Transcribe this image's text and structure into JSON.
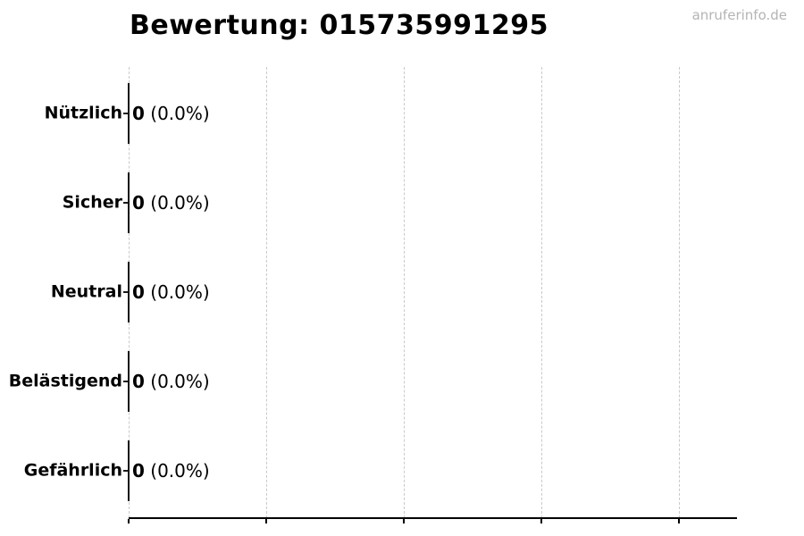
{
  "header": {
    "title": "Bewertung: 015735991295",
    "watermark": "anruferinfo.de"
  },
  "colors": {
    "background": "#ffffff",
    "text": "#000000",
    "grid": "#c9c9c9",
    "bar_edge": "#141414",
    "axis": "#000000",
    "watermark": "#b4b4b4"
  },
  "chart_data": {
    "type": "bar",
    "orientation": "horizontal",
    "title": "Bewertung: 015735991295",
    "categories": [
      "Nützlich",
      "Sicher",
      "Neutral",
      "Belästigend",
      "Gefährlich"
    ],
    "values": [
      0,
      0,
      0,
      0,
      0
    ],
    "percent_labels": [
      "(0.0%)",
      "(0.0%)",
      "(0.0%)",
      "(0.0%)",
      "(0.0%)"
    ],
    "value_annotations": [
      "0 (0.0%)",
      "0 (0.0%)",
      "0 (0.0%)",
      "0 (0.0%)",
      "0 (0.0%)"
    ],
    "xlabel": "",
    "ylabel": "",
    "xlim": [
      0,
      4.42
    ],
    "x_gridline_values": [
      0,
      1,
      2,
      3,
      4
    ],
    "x_tick_labels": [
      "",
      "",
      "",
      "",
      ""
    ],
    "grid": true,
    "legend_position": "none"
  }
}
